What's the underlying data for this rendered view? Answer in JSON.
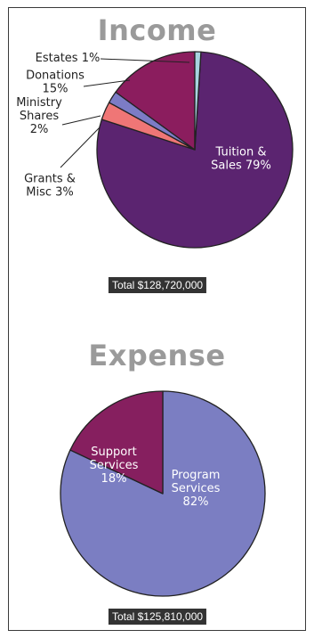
{
  "chart_data": [
    {
      "type": "pie",
      "title": "Income",
      "slices": [
        {
          "label_lines": [
            "Tuition &",
            "Sales 79%"
          ],
          "value": 79,
          "color": "#5b2470"
        },
        {
          "label_lines": [
            "Grants &",
            "Misc 3%"
          ],
          "value": 3,
          "color": "#ef7676"
        },
        {
          "label_lines": [
            "Ministry",
            "Shares",
            "2%"
          ],
          "value": 2,
          "color": "#7c7cc6"
        },
        {
          "label_lines": [
            "Donations",
            "15%"
          ],
          "value": 15,
          "color": "#8b1d5e"
        },
        {
          "label_lines": [
            "Estates 1%"
          ],
          "value": 1,
          "color": "#a8d4e0"
        }
      ],
      "total_label": "Total $128,720,000"
    },
    {
      "type": "pie",
      "title": "Expense",
      "slices": [
        {
          "label_lines": [
            "Program",
            "Services",
            "82%"
          ],
          "value": 82,
          "color": "#7b7ec2"
        },
        {
          "label_lines": [
            "Support",
            "Services",
            "18%"
          ],
          "value": 18,
          "color": "#861f5f"
        }
      ],
      "total_label": "Total $125,810,000"
    }
  ]
}
